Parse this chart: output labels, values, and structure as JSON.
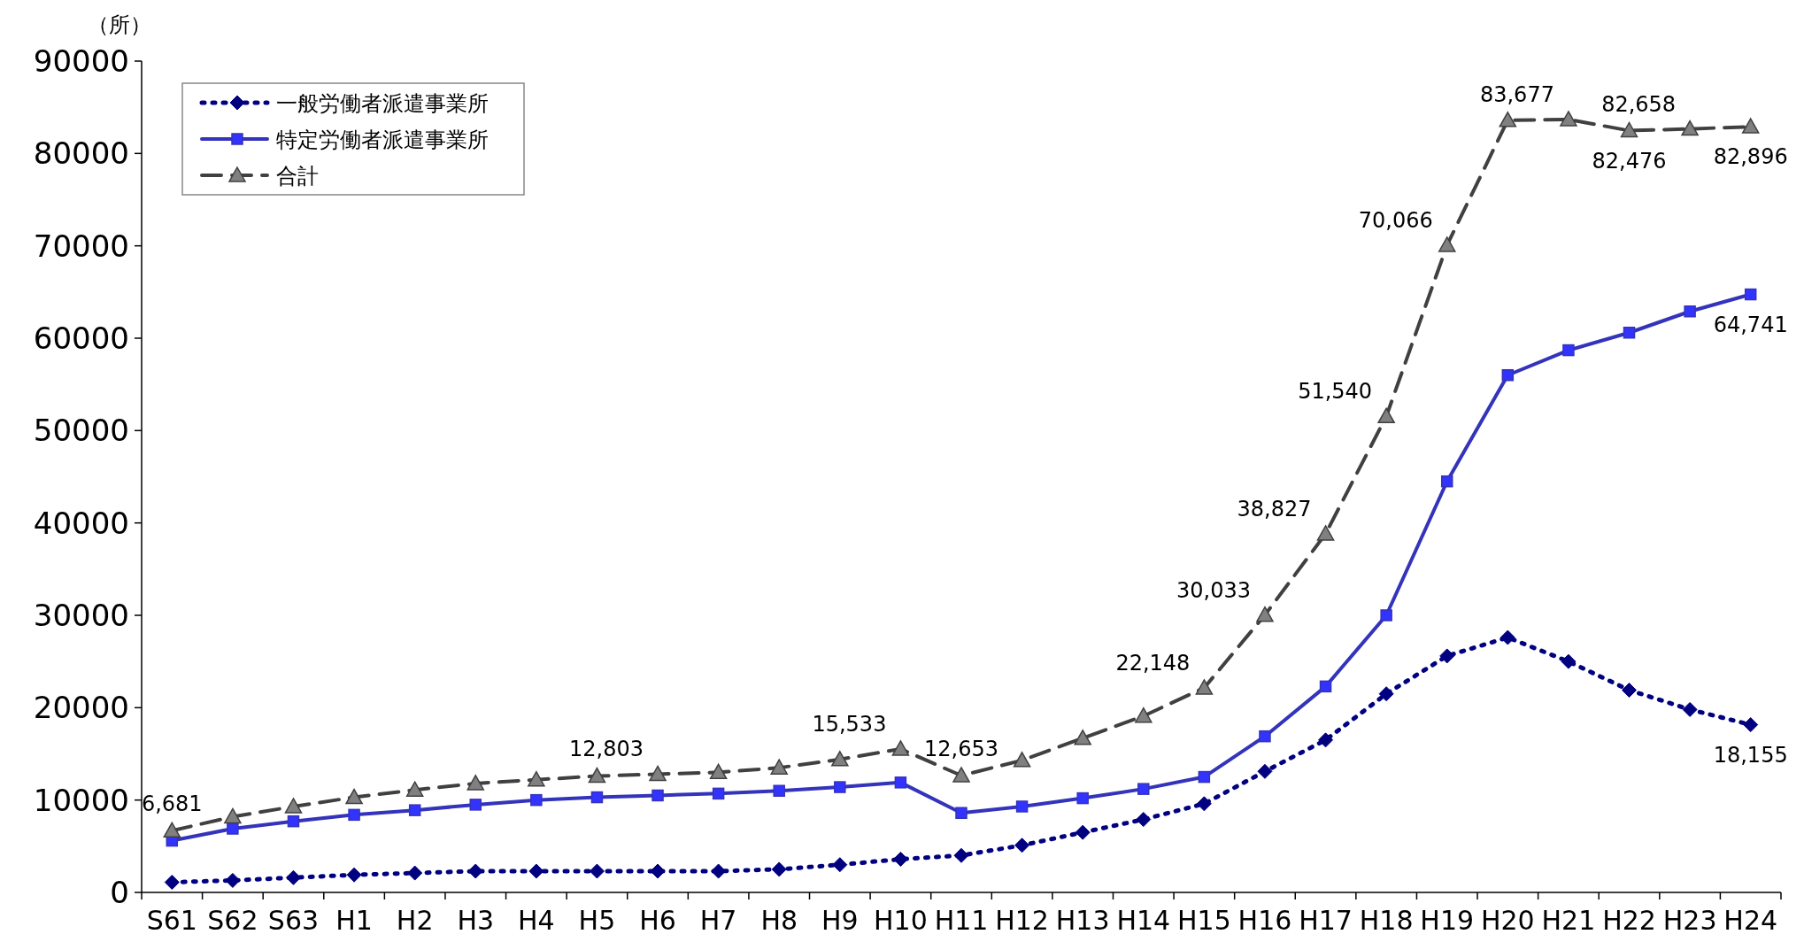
{
  "chart_data": {
    "type": "line",
    "ylabel": "（所）",
    "categories": [
      "S61",
      "S62",
      "S63",
      "H1",
      "H2",
      "H3",
      "H4",
      "H5",
      "H6",
      "H7",
      "H8",
      "H9",
      "H10",
      "H11",
      "H12",
      "H13",
      "H14",
      "H15",
      "H16",
      "H17",
      "H18",
      "H19",
      "H20",
      "H21",
      "H22",
      "H23",
      "H24"
    ],
    "ylim": [
      0,
      90000
    ],
    "yticks": [
      0,
      10000,
      20000,
      30000,
      40000,
      50000,
      60000,
      70000,
      80000,
      90000
    ],
    "legend": "top left",
    "grid": false,
    "series": [
      {
        "name": "一般労働者派遣事業所",
        "color": "#000080",
        "marker": "diamond",
        "line_style": "dotted",
        "values": [
          1100,
          1300,
          1600,
          1900,
          2100,
          2300,
          2300,
          2300,
          2300,
          2300,
          2500,
          3000,
          3600,
          4000,
          5100,
          6500,
          7900,
          9600,
          13100,
          16500,
          21500,
          25600,
          27600,
          25000,
          21900,
          19800,
          18155
        ],
        "value_labels": [
          null,
          null,
          null,
          null,
          null,
          null,
          null,
          null,
          null,
          null,
          null,
          null,
          null,
          null,
          null,
          null,
          null,
          null,
          null,
          null,
          null,
          null,
          null,
          null,
          null,
          null,
          "18,155"
        ]
      },
      {
        "name": "特定労働者派遣事業所",
        "color": "#3333bb",
        "marker": "square",
        "line_style": "solid",
        "values": [
          5600,
          6900,
          7700,
          8400,
          8900,
          9500,
          10000,
          10300,
          10500,
          10700,
          11000,
          11400,
          11900,
          8600,
          9300,
          10200,
          11200,
          12500,
          16900,
          22300,
          30000,
          44500,
          56000,
          58700,
          60600,
          62900,
          64741
        ],
        "value_labels": [
          null,
          null,
          null,
          null,
          null,
          null,
          null,
          null,
          null,
          null,
          null,
          null,
          null,
          null,
          null,
          null,
          null,
          null,
          null,
          null,
          null,
          null,
          null,
          null,
          null,
          null,
          "64,741"
        ]
      },
      {
        "name": "合計",
        "color": "#404040",
        "marker": "triangle",
        "line_style": "dashed",
        "values": [
          6681,
          8200,
          9300,
          10300,
          11100,
          11800,
          12200,
          12600,
          12803,
          13000,
          13500,
          14400,
          15533,
          12653,
          14300,
          16700,
          19100,
          22148,
          30033,
          38827,
          51540,
          70066,
          83600,
          83677,
          82476,
          82658,
          82896
        ],
        "value_labels": [
          "6,681",
          null,
          null,
          null,
          null,
          null,
          null,
          null,
          "12,803",
          null,
          null,
          null,
          "15,533",
          "12,653",
          null,
          null,
          null,
          "22,148",
          "30,033",
          "38,827",
          "51,540",
          "70,066",
          null,
          "83,677",
          "82,476",
          "82,658",
          "82,896"
        ]
      }
    ]
  }
}
